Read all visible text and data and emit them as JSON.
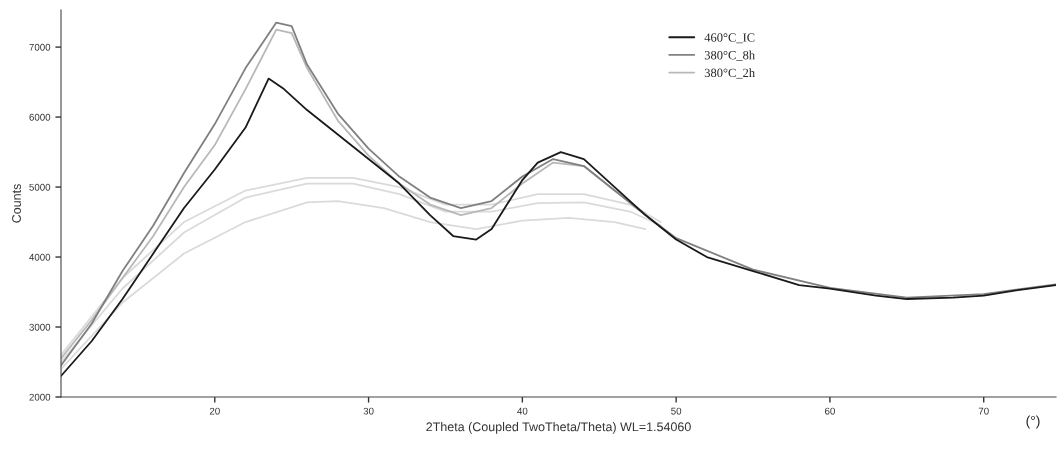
{
  "chart_data": {
    "type": "line",
    "xlabel": "2Theta (Coupled TwoTheta/Theta) WL=1.54060",
    "ylabel": "Counts",
    "xlim": [
      10,
      74.7
    ],
    "ylim": [
      2000,
      7530
    ],
    "xticks": [
      20,
      30,
      40,
      50,
      60,
      70
    ],
    "yticks": [
      2000,
      3000,
      4000,
      5000,
      6000,
      7000
    ],
    "grid": false,
    "legend": "top right",
    "annotations": [
      "(°)"
    ],
    "series": [
      {
        "name": "460°C_IC",
        "color": "#1a1a1a",
        "x": [
          10,
          12,
          14,
          16,
          18,
          20,
          22,
          23.5,
          24.5,
          26,
          28,
          30,
          32,
          34,
          35.5,
          37,
          38,
          39,
          40,
          41,
          42.5,
          44,
          46,
          48,
          50,
          52,
          55,
          58,
          60,
          63,
          65,
          68,
          70,
          72,
          74.7
        ],
        "values": [
          2300,
          2800,
          3400,
          4050,
          4700,
          5250,
          5850,
          6550,
          6400,
          6100,
          5750,
          5400,
          5050,
          4600,
          4300,
          4250,
          4400,
          4750,
          5100,
          5350,
          5500,
          5400,
          5000,
          4600,
          4250,
          4000,
          3800,
          3600,
          3550,
          3450,
          3400,
          3420,
          3450,
          3520,
          3600
        ]
      },
      {
        "name": "380°C_8h",
        "color": "#808080",
        "x": [
          10,
          12,
          14,
          16,
          18,
          20,
          22,
          24,
          25,
          26,
          28,
          30,
          32,
          34,
          36,
          38,
          40,
          42,
          44,
          46,
          48,
          50,
          55,
          60,
          65,
          70,
          74.7
        ],
        "values": [
          2450,
          3050,
          3800,
          4450,
          5200,
          5900,
          6700,
          7350,
          7300,
          6750,
          6050,
          5550,
          5150,
          4850,
          4700,
          4800,
          5150,
          5400,
          5300,
          4950,
          4600,
          4270,
          3820,
          3560,
          3420,
          3470,
          3610
        ]
      },
      {
        "name": "380°C_2h",
        "color": "#b8b8b8",
        "x": [
          10,
          12,
          14,
          16,
          18,
          20,
          22,
          24,
          25,
          26,
          28,
          30,
          32,
          34,
          36,
          38,
          40,
          42,
          44,
          46,
          48
        ],
        "values": [
          2550,
          3100,
          3700,
          4300,
          5000,
          5600,
          6400,
          7250,
          7200,
          6700,
          5950,
          5450,
          5050,
          4750,
          4600,
          4700,
          5050,
          5350,
          5300,
          4950,
          4620
        ]
      },
      {
        "color": "#dadada",
        "x": [
          10,
          14,
          18,
          22,
          26,
          29,
          32,
          35,
          38,
          41,
          44,
          47,
          49
        ],
        "values": [
          2600,
          3700,
          4500,
          4950,
          5130,
          5130,
          5000,
          4750,
          4750,
          4900,
          4900,
          4750,
          4500
        ]
      },
      {
        "color": "#dadada",
        "x": [
          10,
          14,
          18,
          22,
          26,
          29,
          32,
          35,
          38,
          41,
          44,
          47,
          49
        ],
        "values": [
          2500,
          3550,
          4350,
          4850,
          5050,
          5050,
          4900,
          4650,
          4650,
          4770,
          4780,
          4650,
          4450
        ]
      },
      {
        "color": "#dadada",
        "x": [
          10,
          14,
          18,
          22,
          26,
          28,
          31,
          34,
          37,
          40,
          43,
          46,
          48
        ],
        "values": [
          2400,
          3350,
          4050,
          4500,
          4780,
          4800,
          4700,
          4500,
          4400,
          4520,
          4560,
          4500,
          4400
        ]
      }
    ]
  }
}
